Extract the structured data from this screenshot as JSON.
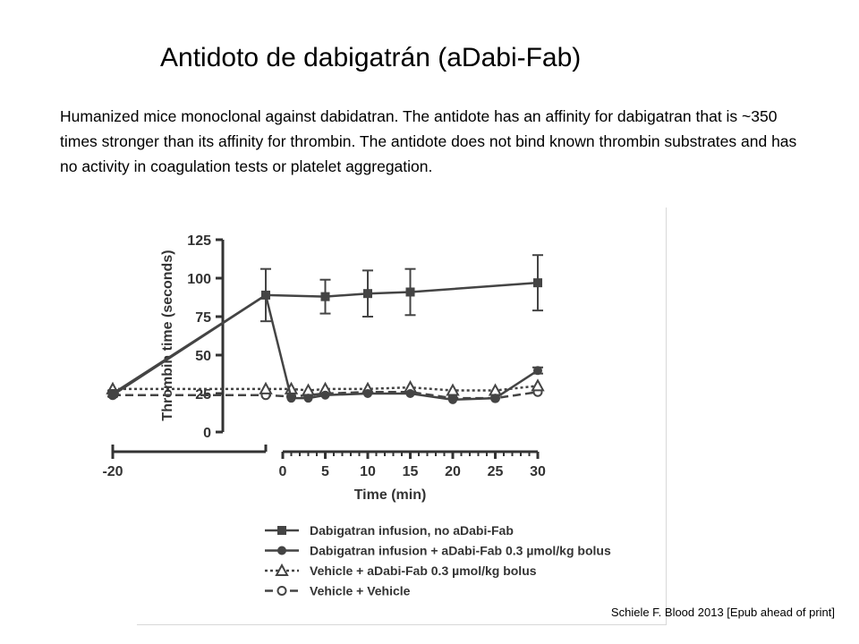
{
  "slide": {
    "title": "Antidoto de dabigatrán (aDabi-Fab)",
    "description": "Humanized mice monoclonal against dabidatran. The antidote has an affinity for dabigatran that is ~350 times stronger than its affinity for thrombin. The antidote does not bind known thrombin substrates and has no activity in coagulation tests or platelet aggregation.",
    "citation": "Schiele F. Blood 2013 [Epub ahead of print]"
  },
  "chart_data": {
    "type": "line",
    "xlabel": "Time (min)",
    "ylabel": "Thrombin time (seconds)",
    "ylim": [
      0,
      125
    ],
    "xticks": [
      -20,
      0,
      5,
      10,
      15,
      20,
      25,
      30
    ],
    "yticks": [
      0,
      25,
      50,
      75,
      100,
      125
    ],
    "grid": false,
    "legend_position": "bottom",
    "colors": {
      "series": "#444444",
      "axis": "#333333"
    },
    "series": [
      {
        "name": "Dabigatran infusion, no aDabi-Fab",
        "marker": "square-filled",
        "linestyle": "solid",
        "x": [
          -20,
          -2,
          5,
          10,
          15,
          30
        ],
        "y": [
          25,
          89,
          88,
          90,
          91,
          97
        ],
        "err": [
          2,
          17,
          11,
          15,
          15,
          18
        ]
      },
      {
        "name": "Dabigatran infusion + aDabi-Fab 0.3 µmol/kg bolus",
        "marker": "circle-filled",
        "linestyle": "solid",
        "x": [
          -20,
          -2,
          1,
          3,
          5,
          10,
          15,
          20,
          25,
          30
        ],
        "y": [
          24,
          89,
          22,
          22,
          24,
          25,
          25,
          21,
          22,
          40
        ],
        "err": [
          0,
          0,
          0,
          0,
          0,
          0,
          0,
          0,
          0,
          2
        ]
      },
      {
        "name": "Vehicle + aDabi-Fab 0.3 µmol/kg bolus",
        "marker": "triangle-open",
        "linestyle": "dotted",
        "x": [
          -20,
          -2,
          1,
          3,
          5,
          10,
          15,
          20,
          25,
          30
        ],
        "y": [
          28,
          28,
          28,
          27,
          28,
          28,
          29,
          27,
          27,
          30
        ],
        "err": [
          0,
          0,
          0,
          0,
          0,
          0,
          0,
          0,
          0,
          0
        ]
      },
      {
        "name": "Vehicle + Vehicle",
        "marker": "circle-open",
        "linestyle": "dashed",
        "x": [
          -20,
          -2,
          1,
          3,
          5,
          10,
          15,
          20,
          25,
          30
        ],
        "y": [
          24,
          24,
          23,
          24,
          25,
          26,
          26,
          22,
          22,
          26
        ],
        "err": [
          0,
          0,
          0,
          0,
          0,
          0,
          0,
          0,
          0,
          0
        ]
      }
    ]
  }
}
